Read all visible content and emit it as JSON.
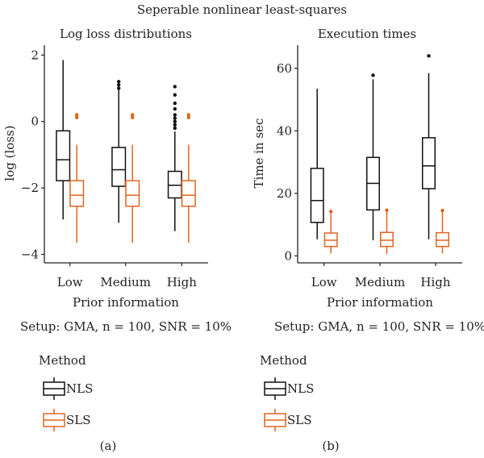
{
  "figure_title": "Seperable nonlinear least-squares",
  "colors": {
    "NLS": "#111111",
    "SLS": "#e0641e"
  },
  "chart_data": [
    {
      "type": "box",
      "title": "Log loss distributions",
      "xlabel": "Prior information",
      "ylabel": "log (loss)",
      "setup": "Setup: GMA, n = 100, SNR = 10%",
      "panel_label": "(a)",
      "categories": [
        "Low",
        "Medium",
        "High"
      ],
      "yticks": [
        "2",
        "0",
        "−2",
        "−4"
      ],
      "ytick_values": [
        2,
        0,
        -2,
        -4
      ],
      "ylim": [
        -4.3,
        2.3
      ],
      "legend": {
        "title": "Method",
        "entries": [
          "NLS",
          "SLS"
        ],
        "placement": "bottom-left"
      },
      "series": [
        {
          "name": "NLS",
          "boxes": [
            {
              "min": -2.95,
              "q1": -1.78,
              "median": -1.15,
              "q3": -0.28,
              "max": 1.85,
              "outliers": []
            },
            {
              "min": -3.05,
              "q1": -1.95,
              "median": -1.45,
              "q3": -0.78,
              "max": 0.95,
              "outliers": [
                1.0,
                1.1,
                1.2
              ]
            },
            {
              "min": -3.3,
              "q1": -2.3,
              "median": -1.92,
              "q3": -1.5,
              "max": -0.3,
              "outliers": [
                -0.2,
                -0.1,
                0.0,
                0.1,
                0.2,
                0.38,
                0.55,
                0.8,
                1.05
              ]
            }
          ]
        },
        {
          "name": "SLS",
          "boxes": [
            {
              "min": -3.65,
              "q1": -2.55,
              "median": -2.22,
              "q3": -1.78,
              "max": -0.7,
              "outliers": [
                0.12,
                0.2
              ]
            },
            {
              "min": -3.65,
              "q1": -2.55,
              "median": -2.22,
              "q3": -1.78,
              "max": -0.7,
              "outliers": [
                0.12,
                0.2
              ]
            },
            {
              "min": -3.65,
              "q1": -2.55,
              "median": -2.22,
              "q3": -1.78,
              "max": -0.7,
              "outliers": [
                0.12,
                0.2
              ]
            }
          ]
        }
      ]
    },
    {
      "type": "box",
      "title": "Execution times",
      "xlabel": "Prior information",
      "ylabel": "Time in sec",
      "setup": "Setup: GMA, n = 100, SNR = 10%",
      "panel_label": "(b)",
      "categories": [
        "Low",
        "Medium",
        "High"
      ],
      "yticks": [
        "0",
        "20",
        "40",
        "60"
      ],
      "ytick_values": [
        0,
        20,
        40,
        60
      ],
      "ylim": [
        -2,
        68
      ],
      "legend": {
        "title": "Method",
        "entries": [
          "NLS",
          "SLS"
        ],
        "placement": "bottom-left"
      },
      "series": [
        {
          "name": "NLS",
          "boxes": [
            {
              "min": 5.3,
              "q1": 10.7,
              "median": 17.7,
              "q3": 28,
              "max": 53.5,
              "outliers": []
            },
            {
              "min": 5,
              "q1": 14.7,
              "median": 23.2,
              "q3": 31.5,
              "max": 56.5,
              "outliers": [
                57.8
              ]
            },
            {
              "min": 5.3,
              "q1": 21.5,
              "median": 28.8,
              "q3": 37.8,
              "max": 58.5,
              "outliers": [
                64
              ]
            }
          ]
        },
        {
          "name": "SLS",
          "boxes": [
            {
              "min": 0.8,
              "q1": 3,
              "median": 5,
              "q3": 7.3,
              "max": 13.8,
              "outliers": [
                14.2
              ]
            },
            {
              "min": 0.6,
              "q1": 3,
              "median": 5,
              "q3": 7.5,
              "max": 14.2,
              "outliers": [
                14.6
              ]
            },
            {
              "min": 0.8,
              "q1": 3,
              "median": 5,
              "q3": 7.4,
              "max": 14.2,
              "outliers": [
                14.5
              ]
            }
          ]
        }
      ]
    }
  ]
}
